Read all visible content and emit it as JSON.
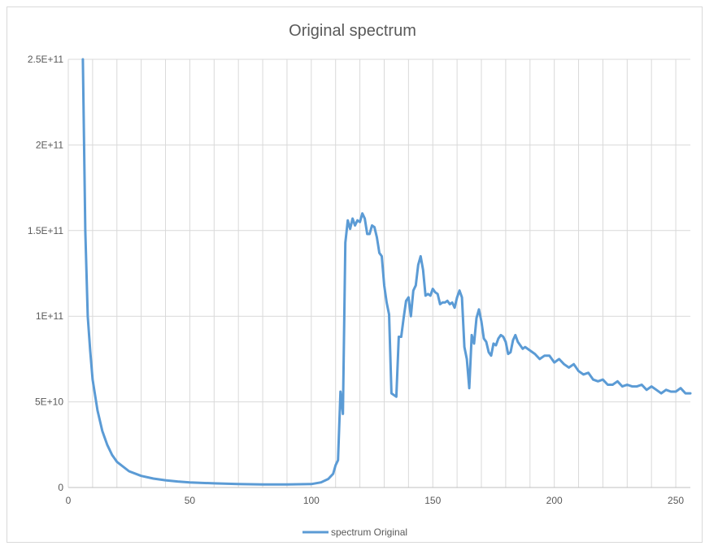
{
  "chart_data": {
    "type": "line",
    "title": "Original spectrum",
    "xlabel": "",
    "ylabel": "",
    "xlim": [
      0,
      256
    ],
    "ylim": [
      0,
      250000000000
    ],
    "x_ticks": [
      0,
      50,
      100,
      150,
      200,
      250
    ],
    "x_tick_labels": [
      "0",
      "50",
      "100",
      "150",
      "200",
      "250"
    ],
    "x_minor_step": 10,
    "y_ticks": [
      0,
      50000000000,
      100000000000,
      150000000000,
      200000000000,
      250000000000
    ],
    "y_tick_labels": [
      "0",
      "5E+10",
      "1E+11",
      "1.5E+11",
      "2E+11",
      "2.5E+11"
    ],
    "grid": true,
    "legend_position": "bottom",
    "series": [
      {
        "name": "spectrum Original",
        "color": "#5b9bd5",
        "points": [
          [
            6,
            250000000000
          ],
          [
            7,
            150000000000
          ],
          [
            8,
            100000000000
          ],
          [
            9,
            80000000000
          ],
          [
            10,
            63000000000
          ],
          [
            12,
            45000000000
          ],
          [
            14,
            33000000000
          ],
          [
            16,
            25000000000
          ],
          [
            18,
            19000000000
          ],
          [
            20,
            15000000000
          ],
          [
            25,
            9500000000
          ],
          [
            30,
            6800000000
          ],
          [
            35,
            5200000000
          ],
          [
            40,
            4200000000
          ],
          [
            45,
            3500000000
          ],
          [
            50,
            3000000000
          ],
          [
            60,
            2400000000
          ],
          [
            70,
            2000000000
          ],
          [
            80,
            1800000000
          ],
          [
            90,
            1800000000
          ],
          [
            100,
            2000000000
          ],
          [
            104,
            3000000000
          ],
          [
            107,
            5000000000
          ],
          [
            109,
            8000000000
          ],
          [
            110,
            13000000000
          ],
          [
            111,
            16000000000
          ],
          [
            112,
            56000000000
          ],
          [
            113,
            43000000000
          ],
          [
            114,
            143000000000
          ],
          [
            115,
            156000000000
          ],
          [
            116,
            151000000000
          ],
          [
            117,
            157000000000
          ],
          [
            118,
            153000000000
          ],
          [
            119,
            156000000000
          ],
          [
            120,
            155000000000
          ],
          [
            121,
            160000000000
          ],
          [
            122,
            157000000000
          ],
          [
            123,
            148000000000
          ],
          [
            124,
            148000000000
          ],
          [
            125,
            153000000000
          ],
          [
            126,
            152000000000
          ],
          [
            127,
            146000000000
          ],
          [
            128,
            137000000000
          ],
          [
            129,
            135000000000
          ],
          [
            130,
            118000000000
          ],
          [
            131,
            108000000000
          ],
          [
            132,
            101000000000
          ],
          [
            133,
            55000000000
          ],
          [
            134,
            54000000000
          ],
          [
            135,
            53000000000
          ],
          [
            136,
            88000000000
          ],
          [
            137,
            88000000000
          ],
          [
            138,
            99000000000
          ],
          [
            139,
            109000000000
          ],
          [
            140,
            111000000000
          ],
          [
            141,
            100000000000
          ],
          [
            142,
            115000000000
          ],
          [
            143,
            118000000000
          ],
          [
            144,
            130000000000
          ],
          [
            145,
            135000000000
          ],
          [
            146,
            127000000000
          ],
          [
            147,
            112000000000
          ],
          [
            148,
            113000000000
          ],
          [
            149,
            112000000000
          ],
          [
            150,
            116000000000
          ],
          [
            151,
            114000000000
          ],
          [
            152,
            113000000000
          ],
          [
            153,
            107000000000
          ],
          [
            154,
            108000000000
          ],
          [
            155,
            108000000000
          ],
          [
            156,
            109000000000
          ],
          [
            157,
            107000000000
          ],
          [
            158,
            108000000000
          ],
          [
            159,
            105000000000
          ],
          [
            160,
            111000000000
          ],
          [
            161,
            115000000000
          ],
          [
            162,
            111000000000
          ],
          [
            163,
            82000000000
          ],
          [
            164,
            75000000000
          ],
          [
            165,
            58000000000
          ],
          [
            166,
            89000000000
          ],
          [
            167,
            84000000000
          ],
          [
            168,
            99000000000
          ],
          [
            169,
            104000000000
          ],
          [
            170,
            97000000000
          ],
          [
            171,
            87000000000
          ],
          [
            172,
            85000000000
          ],
          [
            173,
            79000000000
          ],
          [
            174,
            77000000000
          ],
          [
            175,
            84000000000
          ],
          [
            176,
            83000000000
          ],
          [
            177,
            87000000000
          ],
          [
            178,
            89000000000
          ],
          [
            179,
            88000000000
          ],
          [
            180,
            85000000000
          ],
          [
            181,
            78000000000
          ],
          [
            182,
            79000000000
          ],
          [
            183,
            86000000000
          ],
          [
            184,
            89000000000
          ],
          [
            185,
            85000000000
          ],
          [
            187,
            81000000000
          ],
          [
            188,
            82000000000
          ],
          [
            190,
            80000000000
          ],
          [
            192,
            78000000000
          ],
          [
            194,
            75000000000
          ],
          [
            196,
            77000000000
          ],
          [
            198,
            77000000000
          ],
          [
            200,
            73000000000
          ],
          [
            202,
            75000000000
          ],
          [
            204,
            72000000000
          ],
          [
            206,
            70000000000
          ],
          [
            208,
            72000000000
          ],
          [
            210,
            68000000000
          ],
          [
            212,
            66000000000
          ],
          [
            214,
            67000000000
          ],
          [
            216,
            63000000000
          ],
          [
            218,
            62000000000
          ],
          [
            220,
            63000000000
          ],
          [
            222,
            60000000000
          ],
          [
            224,
            60000000000
          ],
          [
            226,
            62000000000
          ],
          [
            228,
            59000000000
          ],
          [
            230,
            60000000000
          ],
          [
            232,
            59000000000
          ],
          [
            234,
            59000000000
          ],
          [
            236,
            60000000000
          ],
          [
            238,
            57000000000
          ],
          [
            240,
            59000000000
          ],
          [
            242,
            57000000000
          ],
          [
            244,
            55000000000
          ],
          [
            246,
            57000000000
          ],
          [
            248,
            56000000000
          ],
          [
            250,
            56000000000
          ],
          [
            252,
            58000000000
          ],
          [
            254,
            55000000000
          ],
          [
            256,
            55000000000
          ]
        ]
      }
    ]
  }
}
